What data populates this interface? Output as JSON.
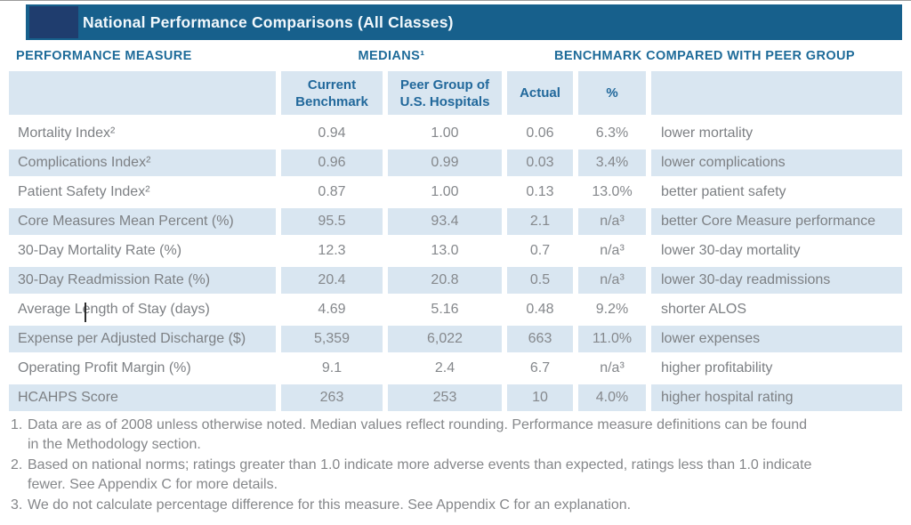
{
  "title_bar": {
    "title": "National Performance Comparisons (All Classes)"
  },
  "section_headers": {
    "performance_measure": "PERFORMANCE MEASURE",
    "medians": "MEDIANS¹",
    "benchmark": "BENCHMARK COMPARED WITH PEER GROUP"
  },
  "columns": {
    "current_benchmark": "Current Benchmark",
    "peer_group": "Peer Group of U.S. Hospitals",
    "actual": "Actual",
    "percent": "%"
  },
  "table": {
    "rows": [
      {
        "measure": "Mortality Index²",
        "current": "0.94",
        "peer": "1.00",
        "actual": "0.06",
        "pct": "6.3%",
        "note": "lower mortality"
      },
      {
        "measure": "Complications Index²",
        "current": "0.96",
        "peer": "0.99",
        "actual": "0.03",
        "pct": "3.4%",
        "note": "lower complications"
      },
      {
        "measure": "Patient Safety Index²",
        "current": "0.87",
        "peer": "1.00",
        "actual": "0.13",
        "pct": "13.0%",
        "note": "better patient safety"
      },
      {
        "measure": "Core Measures Mean Percent (%)",
        "current": "95.5",
        "peer": "93.4",
        "actual": "2.1",
        "pct": "n/a³",
        "note": "better Core Measure performance"
      },
      {
        "measure": "30-Day Mortality Rate (%)",
        "current": "12.3",
        "peer": "13.0",
        "actual": "0.7",
        "pct": "n/a³",
        "note": "lower 30-day mortality"
      },
      {
        "measure": "30-Day Readmission Rate (%)",
        "current": "20.4",
        "peer": "20.8",
        "actual": "0.5",
        "pct": "n/a³",
        "note": "lower 30-day readmissions"
      },
      {
        "measure": "Average Length of Stay (days)",
        "current": "4.69",
        "peer": "5.16",
        "actual": "0.48",
        "pct": "9.2%",
        "note": "shorter ALOS"
      },
      {
        "measure": "Expense per Adjusted Discharge ($)",
        "current": "5,359",
        "peer": "6,022",
        "actual": "663",
        "pct": "11.0%",
        "note": "lower expenses"
      },
      {
        "measure": "Operating Profit Margin (%)",
        "current": "9.1",
        "peer": "2.4",
        "actual": "6.7",
        "pct": "n/a³",
        "note": "higher profitability"
      },
      {
        "measure": "HCAHPS Score",
        "current": "263",
        "peer": "253",
        "actual": "10",
        "pct": "4.0%",
        "note": "higher hospital rating"
      }
    ]
  },
  "footnotes": [
    {
      "num": "1.",
      "lines": [
        "Data are as of 2008 unless otherwise noted. Median values reflect rounding. Performance measure definitions can be found",
        "in the Methodology section."
      ]
    },
    {
      "num": "2.",
      "lines": [
        "Based on national norms; ratings greater than 1.0 indicate more adverse events than expected, ratings less than 1.0 indicate",
        "fewer. See Appendix C for more details."
      ]
    },
    {
      "num": "3.",
      "lines": [
        "We do not calculate percentage difference for this measure. See Appendix C for an explanation."
      ]
    }
  ],
  "colors": {
    "title_bar": "#17608c",
    "navy_box": "#1f3d6e",
    "header_blue": "#1e6b99",
    "shaded_cell": "#d9e6f1",
    "text_gray": "#7d8084"
  }
}
